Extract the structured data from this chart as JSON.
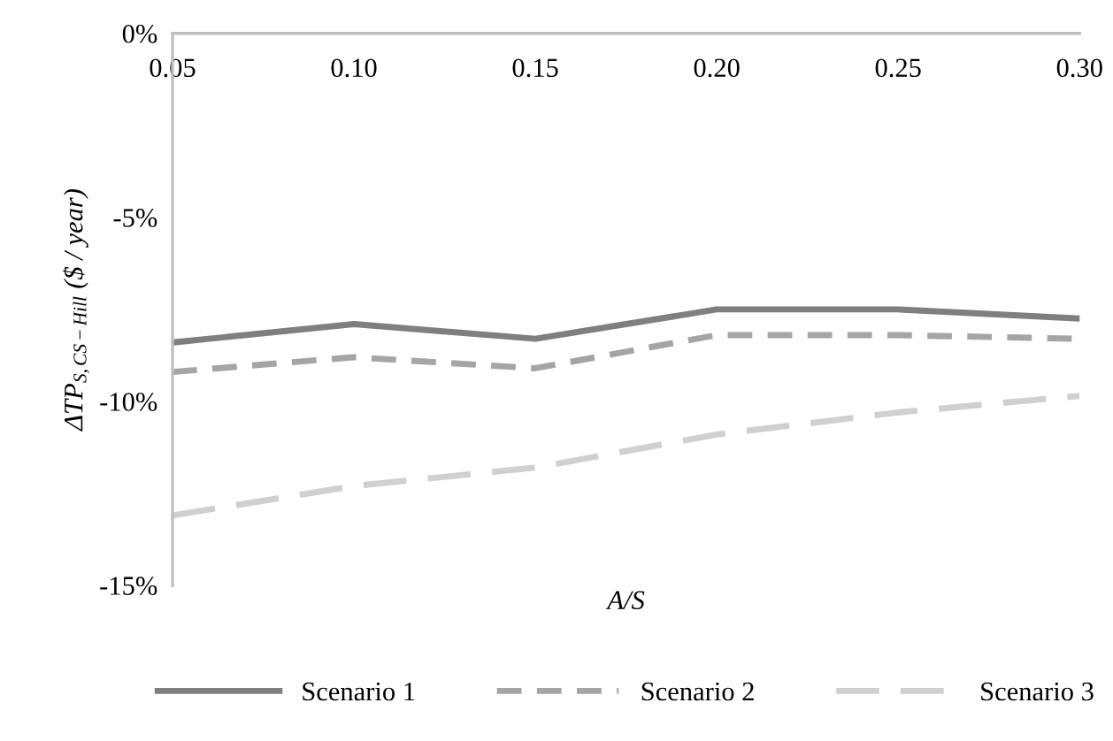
{
  "chart_data": {
    "type": "line",
    "xlabel": "A/S",
    "ylabel": "ΔTP$_{S,CS−Hill}$ ($ / year)",
    "categories": [
      "0.05",
      "0.10",
      "0.15",
      "0.20",
      "0.25",
      "0.30"
    ],
    "series": [
      {
        "name": "Scenario 1",
        "color": "#7f7f7f",
        "line_style": "solid",
        "values": [
          -8.4,
          -7.9,
          -8.3,
          -7.5,
          -7.5,
          -7.75
        ]
      },
      {
        "name": "Scenario 2",
        "color": "#a5a5a5",
        "line_style": "dashed",
        "values": [
          -9.2,
          -8.8,
          -9.1,
          -8.2,
          -8.2,
          -8.3
        ]
      },
      {
        "name": "Scenario 3",
        "color": "#d0d0d0",
        "line_style": "dashed",
        "values": [
          -13.1,
          -12.3,
          -11.8,
          -10.9,
          -10.3,
          -9.85
        ]
      }
    ],
    "ylim": [
      -15,
      0
    ],
    "yticks": [
      {
        "value": 0,
        "label": "0%"
      },
      {
        "value": -5,
        "label": "-5%"
      },
      {
        "value": -10,
        "label": "-10%"
      },
      {
        "value": -15,
        "label": "-15%"
      }
    ],
    "grid": false,
    "legend": "bottom",
    "marker": "none"
  }
}
